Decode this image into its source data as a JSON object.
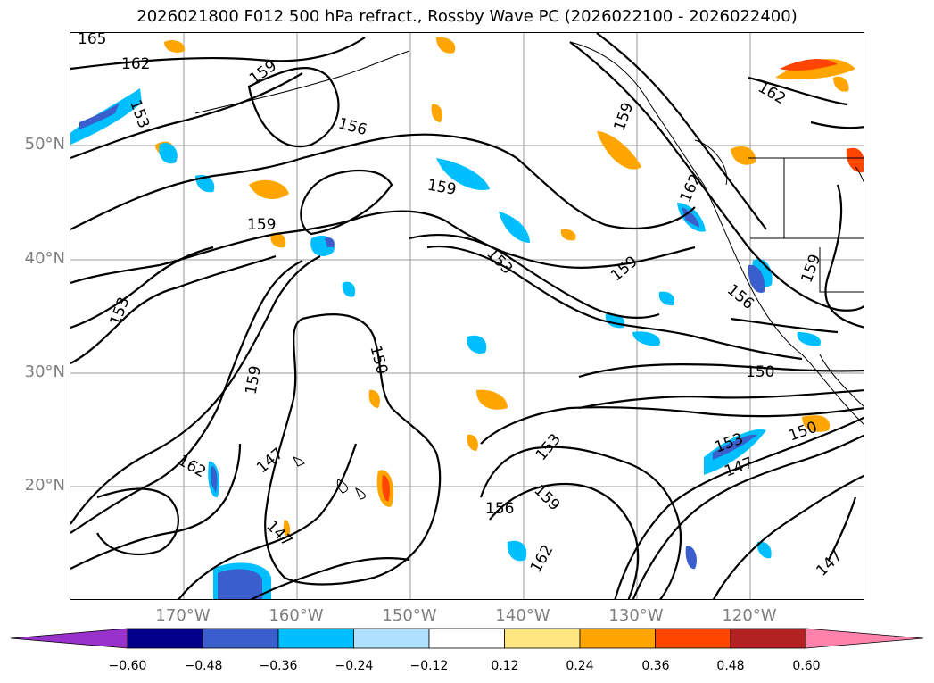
{
  "title": "2026021800 F012 500 hPa refract., Rossby Wave PC (2026022100 - 2026022400)",
  "lat_labels": [
    "50°N",
    "40°N",
    "30°N",
    "20°N"
  ],
  "lon_labels": [
    "170°W",
    "160°W",
    "150°W",
    "140°W",
    "130°W",
    "120°W"
  ],
  "colorbar": {
    "ticks": [
      "−0.60",
      "−0.48",
      "−0.36",
      "−0.24",
      "−0.12",
      "0.12",
      "0.24",
      "0.36",
      "0.48",
      "0.60"
    ],
    "colors": [
      "#9932cc",
      "#00008b",
      "#3a5fcd",
      "#00bfff",
      "#b0e0ff",
      "#ffffff",
      "#ffe680",
      "#ffa500",
      "#ff4500",
      "#b22222",
      "#ff82ab"
    ]
  },
  "contour_labels": [
    "165",
    "162",
    "159",
    "153",
    "156",
    "159",
    "159",
    "159",
    "153",
    "159",
    "153",
    "159",
    "150",
    "162",
    "162",
    "156",
    "150",
    "159",
    "147",
    "162",
    "153",
    "147",
    "156",
    "159",
    "162",
    "153",
    "147",
    "150",
    "147"
  ]
}
